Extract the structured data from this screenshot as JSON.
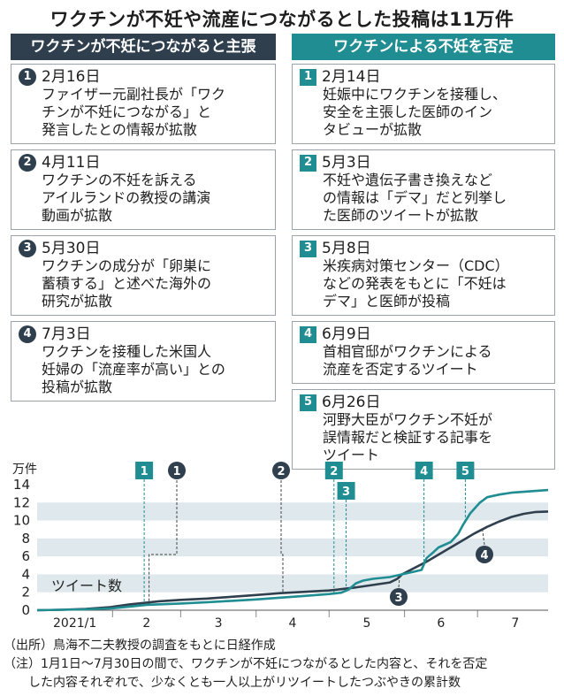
{
  "title": "ワクチンが不妊や流産につながるとした投稿は11万件",
  "claims": {
    "header": "ワクチンが不妊につながると主張",
    "items": [
      {
        "num": "1",
        "date": "2月16日",
        "text": "ファイザー元副社長が「ワク\nチンが不妊につながる」と\n発言したとの情報が拡散"
      },
      {
        "num": "2",
        "date": "4月11日",
        "text": "ワクチンの不妊を訴える\nアイルランドの教授の講演\n動画が拡散"
      },
      {
        "num": "3",
        "date": "5月30日",
        "text": "ワクチンの成分が「卵巣に\n蓄積する」と述べた海外の\n研究が拡散"
      },
      {
        "num": "4",
        "date": "7月3日",
        "text": "ワクチンを接種した米国人\n妊婦の「流産率が高い」との\n投稿が拡散"
      }
    ]
  },
  "denials": {
    "header": "ワクチンによる不妊を否定",
    "items": [
      {
        "num": "1",
        "date": "2月14日",
        "text": "妊娠中にワクチンを接種し、\n安全を主張した医師のイン\nタビューが拡散"
      },
      {
        "num": "2",
        "date": "5月3日",
        "text": "不妊や遺伝子書き換えなど\nの情報は「デマ」だと列挙し\nた医師のツイートが拡散"
      },
      {
        "num": "3",
        "date": "5月8日",
        "text": "米疾病対策センター（CDC）\nなどの発表をもとに「不妊は\nデマ」と医師が投稿"
      },
      {
        "num": "4",
        "date": "6月9日",
        "text": "首相官邸がワクチンによる\n流産を否定するツイート"
      },
      {
        "num": "5",
        "date": "6月26日",
        "text": "河野大臣がワクチン不妊が\n誤情報だと検証する記事を\nツイート"
      }
    ]
  },
  "chart_data": {
    "type": "line",
    "unit_label": "万件",
    "series_label": "ツイート数",
    "xlim": [
      0,
      210
    ],
    "ylim": [
      0,
      14
    ],
    "y_ticks": [
      0,
      2,
      4,
      6,
      8,
      10,
      12,
      14
    ],
    "x_tick_labels": [
      {
        "label": "2021/1",
        "center": 15.5
      },
      {
        "label": "2",
        "center": 45
      },
      {
        "label": "3",
        "center": 74.5
      },
      {
        "label": "4",
        "center": 105
      },
      {
        "label": "5",
        "center": 135.5
      },
      {
        "label": "6",
        "center": 166
      },
      {
        "label": "7",
        "center": 196.5
      }
    ],
    "month_boundaries": [
      31,
      59,
      90,
      120,
      151,
      181
    ],
    "grid_bands": [
      [
        2,
        4
      ],
      [
        6,
        8
      ],
      [
        10,
        12
      ]
    ],
    "series": [
      {
        "color": "#2f3f4e",
        "x": [
          0,
          10,
          20,
          30,
          38,
          45,
          50,
          59,
          70,
          80,
          90,
          100,
          110,
          120,
          125,
          130,
          135,
          140,
          145,
          148,
          150,
          155,
          160,
          165,
          170,
          175,
          180,
          185,
          190,
          195,
          200,
          205,
          210
        ],
        "y": [
          0,
          0.05,
          0.15,
          0.35,
          0.65,
          0.85,
          1.0,
          1.15,
          1.3,
          1.5,
          1.7,
          1.9,
          2.05,
          2.2,
          2.35,
          2.5,
          2.7,
          2.9,
          3.1,
          3.5,
          4.0,
          4.7,
          5.4,
          6.2,
          7.0,
          7.8,
          8.6,
          9.3,
          9.9,
          10.4,
          10.75,
          10.95,
          11.0
        ]
      },
      {
        "color": "#1f8d92",
        "x": [
          0,
          10,
          20,
          30,
          38,
          45,
          59,
          70,
          80,
          90,
          100,
          110,
          120,
          125,
          128,
          131,
          134,
          138,
          145,
          150,
          155,
          158,
          160,
          163,
          165,
          170,
          173,
          175,
          178,
          182,
          185,
          190,
          195,
          200,
          205,
          210
        ],
        "y": [
          0,
          0.05,
          0.1,
          0.2,
          0.4,
          0.6,
          0.75,
          0.9,
          1.05,
          1.2,
          1.4,
          1.6,
          1.8,
          1.95,
          2.3,
          3.0,
          3.3,
          3.5,
          3.7,
          4.0,
          4.3,
          4.5,
          5.8,
          6.5,
          7.0,
          7.6,
          8.5,
          9.5,
          10.8,
          12.0,
          12.6,
          12.9,
          13.1,
          13.2,
          13.3,
          13.4
        ]
      }
    ],
    "events_claims": [
      {
        "num": "1",
        "day": 46
      },
      {
        "num": "2",
        "day": 101
      },
      {
        "num": "3",
        "day": 149
      },
      {
        "num": "4",
        "day": 183
      }
    ],
    "events_denials": [
      {
        "num": "1",
        "day": 44
      },
      {
        "num": "2",
        "day": 122
      },
      {
        "num": "3",
        "day": 127
      },
      {
        "num": "4",
        "day": 159
      },
      {
        "num": "5",
        "day": 176
      }
    ]
  },
  "notes": {
    "source": "（出所）鳥海不二夫教授の調査をもとに日経作成",
    "note": "（注）1月1日～7月30日の間で、ワクチンが不妊につながるとした内容と、それを否定\n　　した内容それぞれで、少なくとも一人以上がリツイートしたつぶやきの累計数"
  },
  "colors": {
    "claims": "#2f3f4e",
    "denials": "#1f8d92",
    "band": "#dfe8ec"
  }
}
